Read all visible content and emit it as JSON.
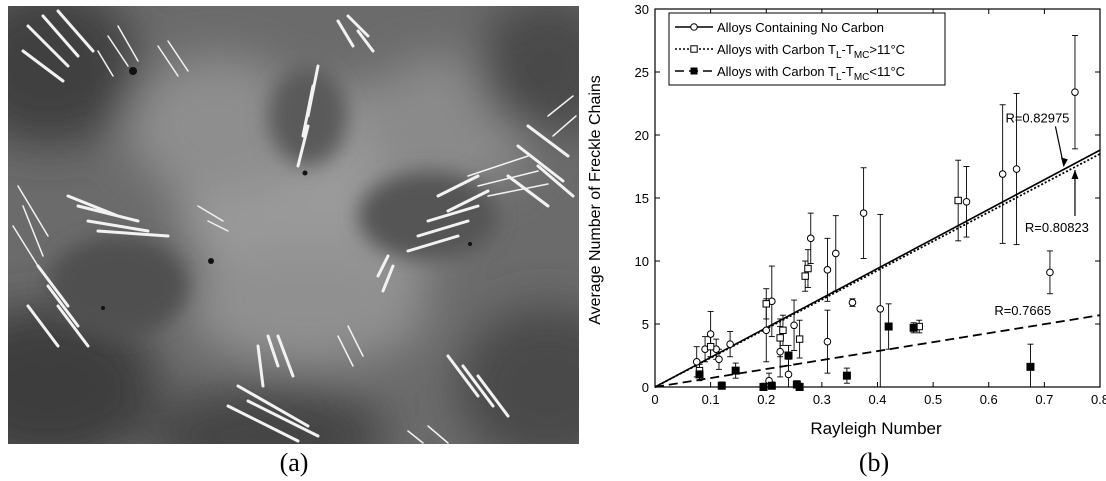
{
  "panels": {
    "a": {
      "label": "(a)"
    },
    "b": {
      "label": "(b)"
    }
  },
  "colors": {
    "micro_bg": "#6b6b6b",
    "micro_light": "#9a9a9a",
    "micro_dark": "#3a3a3a",
    "dendrite": "#f2f2f2",
    "ink": "#000000"
  },
  "chart_data": {
    "type": "scatter",
    "title": "",
    "xlabel": "Rayleigh Number",
    "ylabel": "Average Number of Freckle Chains",
    "xlim": [
      0,
      0.8
    ],
    "ylim": [
      0,
      30
    ],
    "xticks": [
      "0",
      "0.1",
      "0.2",
      "0.3",
      "0.4",
      "0.5",
      "0.6",
      "0.7",
      "0.8"
    ],
    "yticks": [
      "0",
      "5",
      "10",
      "15",
      "20",
      "25",
      "30"
    ],
    "grid": false,
    "legend_position": "top-left",
    "legend": [
      {
        "text": "Alloys Containing No Carbon",
        "style": "solid",
        "marker": "open-circle"
      },
      {
        "text_main": "Alloys with Carbon T",
        "sub1": "L",
        "mid": "-T",
        "sub2": "MC",
        "tail": ">11°C",
        "style": "dotted",
        "marker": "open-square"
      },
      {
        "text_main": "Alloys with Carbon T",
        "sub1": "L",
        "mid": "-T",
        "sub2": "MC",
        "tail": "<11°C",
        "style": "dashed",
        "marker": "filled-square"
      }
    ],
    "series": [
      {
        "name": "Alloys Containing No Carbon",
        "marker": "open-circle",
        "points": [
          {
            "x": 0.075,
            "y": 2.0,
            "err": 1.2
          },
          {
            "x": 0.09,
            "y": 3.0,
            "err": 1.0
          },
          {
            "x": 0.1,
            "y": 4.2,
            "err": 1.8
          },
          {
            "x": 0.11,
            "y": 3.0,
            "err": 0.8
          },
          {
            "x": 0.115,
            "y": 2.2,
            "err": 0.8
          },
          {
            "x": 0.135,
            "y": 3.4,
            "err": 1.0
          },
          {
            "x": 0.2,
            "y": 4.5,
            "err": 2.5
          },
          {
            "x": 0.205,
            "y": 0.5,
            "err": 0.6
          },
          {
            "x": 0.21,
            "y": 6.8,
            "err": 2.8
          },
          {
            "x": 0.225,
            "y": 2.8,
            "err": 2.0
          },
          {
            "x": 0.24,
            "y": 1.0,
            "err": 1.2
          },
          {
            "x": 0.25,
            "y": 4.9,
            "err": 2.0
          },
          {
            "x": 0.28,
            "y": 11.8,
            "err": 2.0
          },
          {
            "x": 0.31,
            "y": 3.6,
            "err": 2.5
          },
          {
            "x": 0.31,
            "y": 9.3,
            "err": 2.5
          },
          {
            "x": 0.325,
            "y": 10.6,
            "err": 3.0
          },
          {
            "x": 0.355,
            "y": 6.7,
            "err": 0.3
          },
          {
            "x": 0.375,
            "y": 13.8,
            "err": 3.6
          },
          {
            "x": 0.405,
            "y": 6.2,
            "err": 7.5
          },
          {
            "x": 0.56,
            "y": 14.7,
            "err": 2.8
          },
          {
            "x": 0.625,
            "y": 16.9,
            "err": 5.5
          },
          {
            "x": 0.65,
            "y": 17.3,
            "err": 6.0
          },
          {
            "x": 0.71,
            "y": 9.1,
            "err": 1.7
          },
          {
            "x": 0.755,
            "y": 23.4,
            "err": 4.5
          }
        ]
      },
      {
        "name": "Alloys with Carbon TL-TMC>11°C",
        "marker": "open-square",
        "points": [
          {
            "x": 0.08,
            "y": 1.3,
            "err": 0.5
          },
          {
            "x": 0.1,
            "y": 3.2,
            "err": 0.8
          },
          {
            "x": 0.2,
            "y": 6.6,
            "err": 1.2
          },
          {
            "x": 0.225,
            "y": 3.9,
            "err": 1.5
          },
          {
            "x": 0.23,
            "y": 4.5,
            "err": 1.2
          },
          {
            "x": 0.26,
            "y": 3.8,
            "err": 1.5
          },
          {
            "x": 0.27,
            "y": 8.8,
            "err": 1.2
          },
          {
            "x": 0.275,
            "y": 9.4,
            "err": 1.5
          },
          {
            "x": 0.475,
            "y": 4.8,
            "err": 0.5
          },
          {
            "x": 0.545,
            "y": 14.8,
            "err": 3.2
          }
        ]
      },
      {
        "name": "Alloys with Carbon TL-TMC<11°C",
        "marker": "filled-square",
        "points": [
          {
            "x": 0.08,
            "y": 1.0,
            "err": 0.5
          },
          {
            "x": 0.12,
            "y": 0.1,
            "err": 0.3
          },
          {
            "x": 0.145,
            "y": 1.3,
            "err": 0.6
          },
          {
            "x": 0.195,
            "y": 0.0,
            "err": 0.3
          },
          {
            "x": 0.21,
            "y": 0.1,
            "err": 0.3
          },
          {
            "x": 0.24,
            "y": 2.5,
            "err": 0.8
          },
          {
            "x": 0.255,
            "y": 0.2,
            "err": 0.3
          },
          {
            "x": 0.26,
            "y": 0.0,
            "err": 0.3
          },
          {
            "x": 0.345,
            "y": 0.9,
            "err": 0.6
          },
          {
            "x": 0.42,
            "y": 4.8,
            "err": 1.8
          },
          {
            "x": 0.465,
            "y": 4.7,
            "err": 0.4
          },
          {
            "x": 0.675,
            "y": 1.6,
            "err": 1.8
          }
        ]
      }
    ],
    "fits": [
      {
        "series": "Alloys Containing No Carbon",
        "style": "solid",
        "x": [
          0,
          0.8
        ],
        "y": [
          0,
          18.8
        ]
      },
      {
        "series": "Alloys with Carbon TL-TMC>11°C",
        "style": "dotted",
        "x": [
          0,
          0.8
        ],
        "y": [
          0,
          18.5
        ]
      },
      {
        "series": "Alloys with Carbon TL-TMC<11°C",
        "style": "dashed",
        "x": [
          0,
          0.8
        ],
        "y": [
          0,
          5.7
        ]
      }
    ],
    "annotations": [
      {
        "text": "R=0.82975",
        "x": 0.63,
        "y": 21.0
      },
      {
        "text": "R=0.80823",
        "x": 0.665,
        "y": 12.3
      },
      {
        "text": "R=0.7665",
        "x": 0.61,
        "y": 5.7
      }
    ]
  }
}
